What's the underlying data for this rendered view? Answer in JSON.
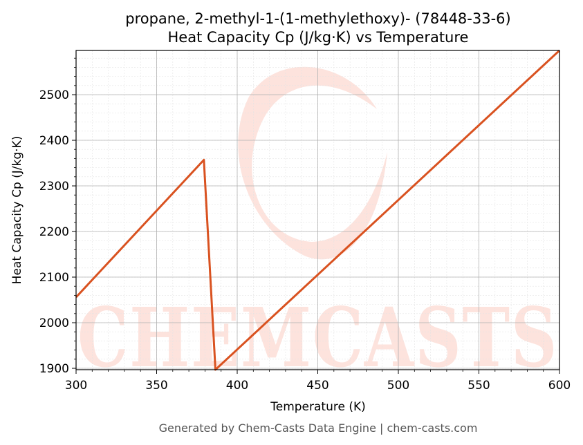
{
  "chart_data": {
    "type": "line",
    "title": "propane, 2-methyl-1-(1-methylethoxy)- (78448-33-6)",
    "subtitle": "Heat Capacity Cp (J/kg·K) vs Temperature",
    "xlabel": "Temperature (K)",
    "ylabel": "Heat Capacity Cp (J/kg·K)",
    "xlim": [
      300,
      600
    ],
    "ylim": [
      1897,
      2597
    ],
    "x_ticks": [
      300,
      350,
      400,
      450,
      500,
      550,
      600
    ],
    "y_ticks": [
      1900,
      2000,
      2100,
      2200,
      2300,
      2400,
      2500
    ],
    "grid": true,
    "series": [
      {
        "color": "#d95220",
        "points": [
          [
            300,
            2056
          ],
          [
            379.3,
            2357
          ],
          [
            386.5,
            1897
          ],
          [
            600,
            2597
          ]
        ]
      }
    ]
  },
  "watermark": "CHEMCASTS",
  "footer": "Generated by Chem-Casts Data Engine | chem-casts.com",
  "colors": {
    "line": "#d95220",
    "watermark": "#fde3dd"
  }
}
